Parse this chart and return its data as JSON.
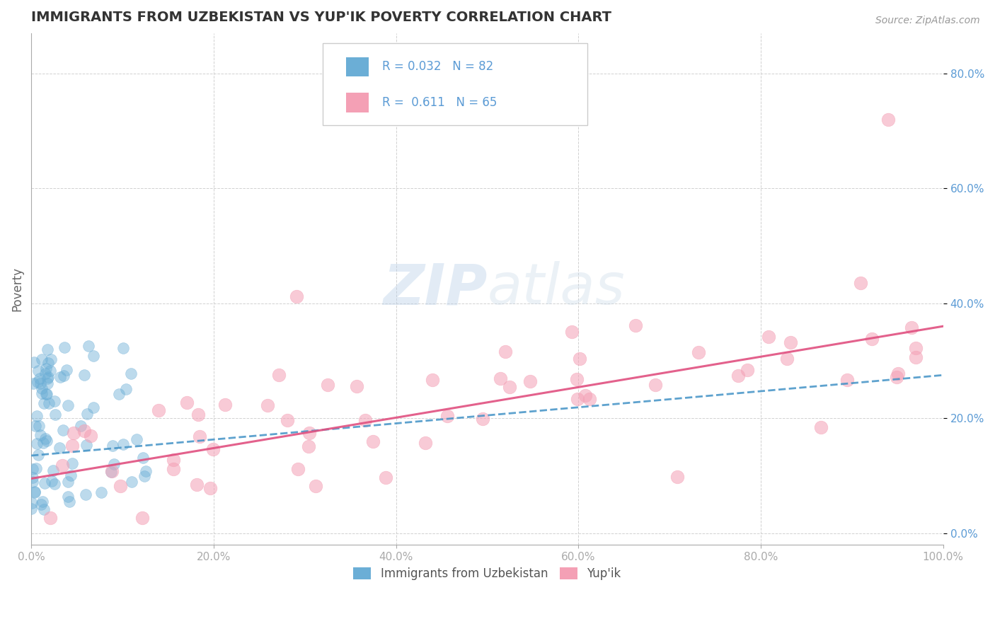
{
  "title": "IMMIGRANTS FROM UZBEKISTAN VS YUP'IK POVERTY CORRELATION CHART",
  "source_text": "Source: ZipAtlas.com",
  "ylabel": "Poverty",
  "xlabel": "",
  "xlim": [
    0.0,
    1.0
  ],
  "ylim": [
    -0.02,
    0.87
  ],
  "yticks": [
    0.0,
    0.2,
    0.4,
    0.6,
    0.8
  ],
  "ytick_labels": [
    "0.0%",
    "20.0%",
    "40.0%",
    "60.0%",
    "80.0%"
  ],
  "xticks": [
    0.0,
    0.2,
    0.4,
    0.6,
    0.8,
    1.0
  ],
  "xtick_labels": [
    "0.0%",
    "20.0%",
    "40.0%",
    "60.0%",
    "80.0%",
    "100.0%"
  ],
  "r_uzbekistan": 0.032,
  "n_uzbekistan": 82,
  "r_yupik": 0.611,
  "n_yupik": 65,
  "uzbekistan_color": "#6baed6",
  "yupik_color": "#f4a0b5",
  "uzbekistan_trend_color": "#4292c6",
  "yupik_trend_color": "#e05080",
  "background_color": "#ffffff",
  "grid_color": "#cccccc",
  "title_color": "#333333",
  "legend_label_uzbekistan": "Immigrants from Uzbekistan",
  "legend_label_yupik": "Yup'ik",
  "watermark_zip": "ZIP",
  "watermark_atlas": "atlas",
  "legend_r_color": "#5b9bd5"
}
